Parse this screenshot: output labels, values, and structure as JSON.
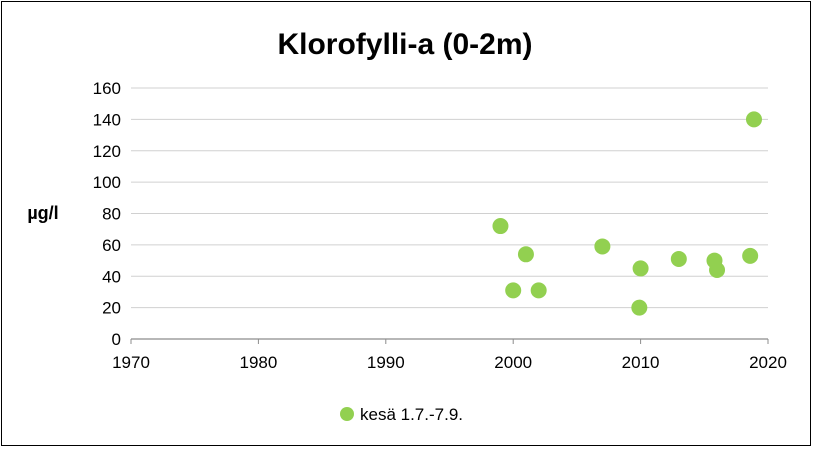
{
  "chart_data": {
    "type": "scatter",
    "title": "Klorofylli-a (0-2m)",
    "xlabel": "",
    "ylabel": "µg/l",
    "xlim": [
      1970,
      2020
    ],
    "ylim": [
      0,
      160
    ],
    "x_ticks": [
      1970,
      1980,
      1990,
      2000,
      2010,
      2020
    ],
    "y_ticks": [
      0,
      20,
      40,
      60,
      80,
      100,
      120,
      140,
      160
    ],
    "grid": true,
    "legend_position": "bottom",
    "series": [
      {
        "name": "kesä 1.7.-7.9.",
        "color": "#92d050",
        "x": [
          1999.0,
          2000.0,
          2001.0,
          2002.0,
          2007.0,
          2009.9,
          2010.0,
          2013.0,
          2015.8,
          2016.0,
          2018.6,
          2018.9
        ],
        "y": [
          72,
          31,
          54,
          31,
          59,
          20,
          45,
          51,
          50,
          44,
          53,
          140
        ]
      }
    ]
  }
}
